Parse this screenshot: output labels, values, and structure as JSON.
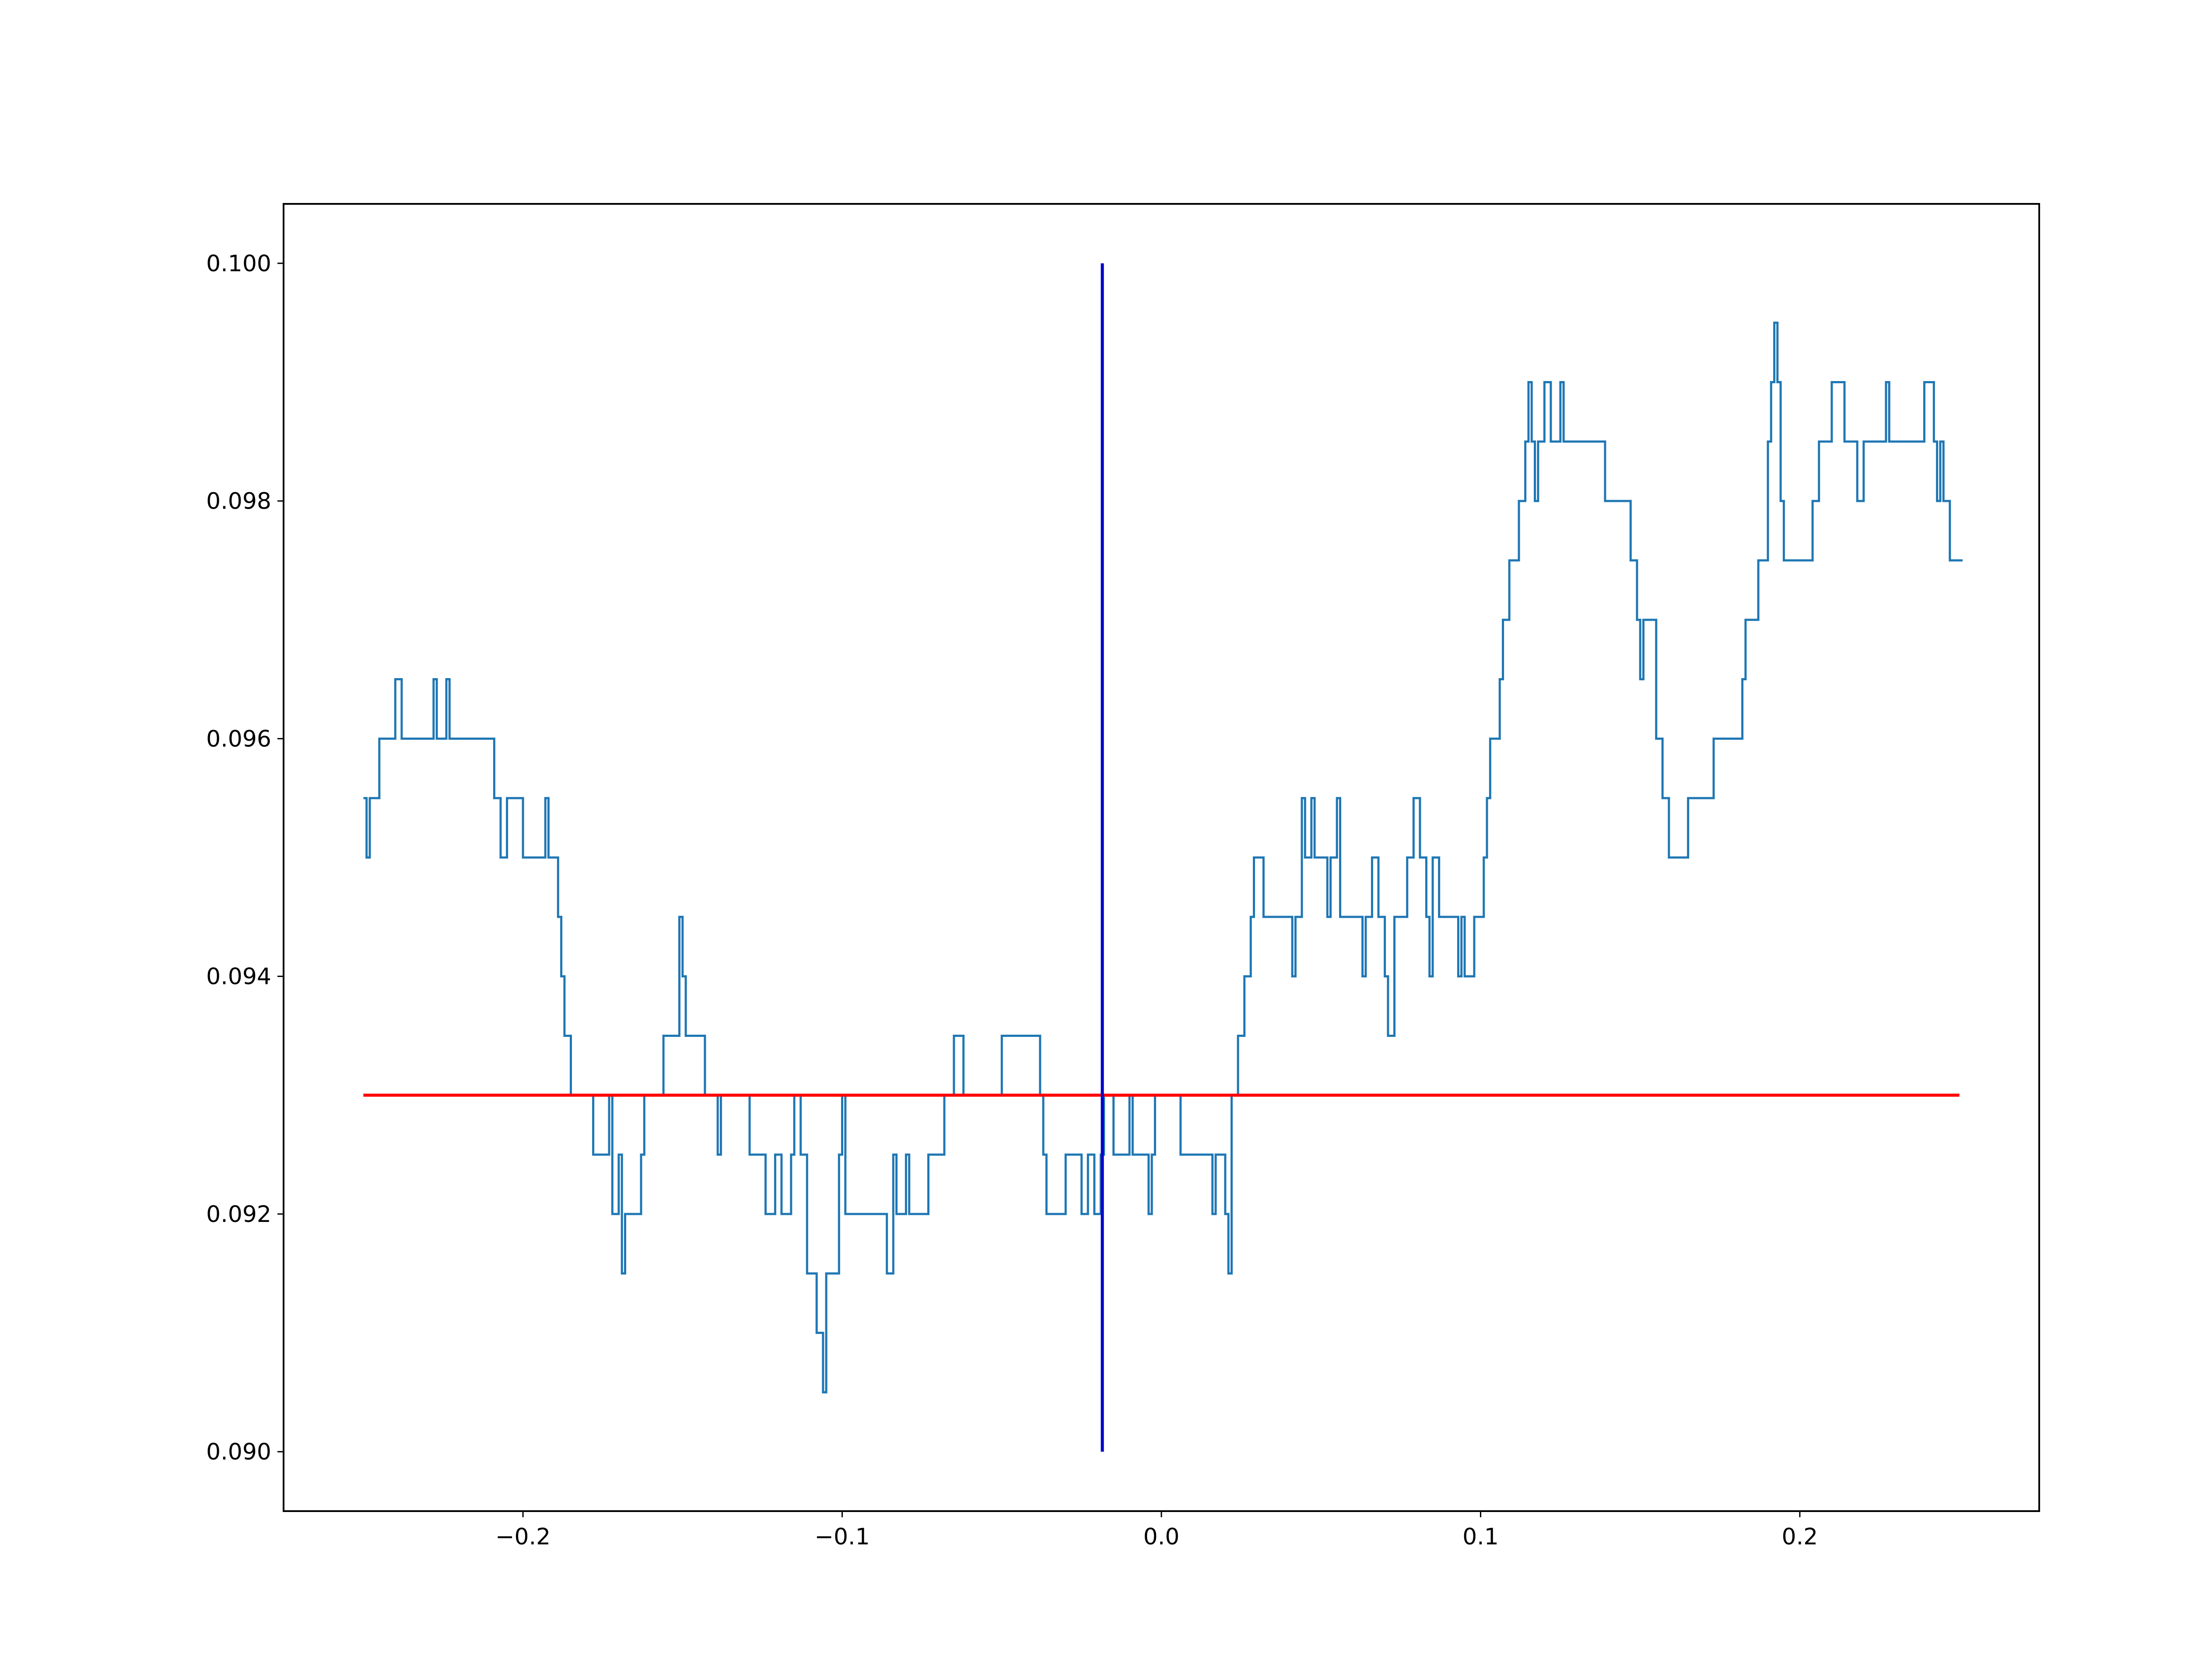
{
  "chart_data": {
    "type": "line",
    "title": "",
    "xlabel": "",
    "ylabel": "",
    "xlim": [
      -0.275,
      0.275
    ],
    "ylim": [
      0.0895,
      0.1005
    ],
    "grid": false,
    "legend": "none",
    "x_ticks": [
      {
        "value": -0.2,
        "label": "−0.2"
      },
      {
        "value": -0.1,
        "label": "−0.1"
      },
      {
        "value": 0.0,
        "label": "0.0"
      },
      {
        "value": 0.1,
        "label": "0.1"
      },
      {
        "value": 0.2,
        "label": "0.2"
      }
    ],
    "y_ticks": [
      {
        "value": 0.09,
        "label": "0.090"
      },
      {
        "value": 0.092,
        "label": "0.092"
      },
      {
        "value": 0.094,
        "label": "0.094"
      },
      {
        "value": 0.096,
        "label": "0.096"
      },
      {
        "value": 0.098,
        "label": "0.098"
      },
      {
        "value": 0.1,
        "label": "0.100"
      }
    ],
    "series": [
      {
        "style": "step",
        "color": "#1f77b4",
        "points": [
          [
            -0.25,
            0.0955
          ],
          [
            -0.249,
            0.095
          ],
          [
            -0.248,
            0.0955
          ],
          [
            -0.245,
            0.096
          ],
          [
            -0.24,
            0.0965
          ],
          [
            -0.238,
            0.096
          ],
          [
            -0.228,
            0.0965
          ],
          [
            -0.227,
            0.096
          ],
          [
            -0.224,
            0.0965
          ],
          [
            -0.223,
            0.096
          ],
          [
            -0.209,
            0.0955
          ],
          [
            -0.207,
            0.095
          ],
          [
            -0.205,
            0.0955
          ],
          [
            -0.2,
            0.095
          ],
          [
            -0.193,
            0.0955
          ],
          [
            -0.192,
            0.095
          ],
          [
            -0.189,
            0.0945
          ],
          [
            -0.188,
            0.094
          ],
          [
            -0.187,
            0.0935
          ],
          [
            -0.185,
            0.093
          ],
          [
            -0.178,
            0.0925
          ],
          [
            -0.173,
            0.093
          ],
          [
            -0.172,
            0.092
          ],
          [
            -0.17,
            0.0925
          ],
          [
            -0.169,
            0.0915
          ],
          [
            -0.168,
            0.092
          ],
          [
            -0.163,
            0.0925
          ],
          [
            -0.162,
            0.093
          ],
          [
            -0.156,
            0.0935
          ],
          [
            -0.151,
            0.0945
          ],
          [
            -0.15,
            0.094
          ],
          [
            -0.149,
            0.0935
          ],
          [
            -0.143,
            0.093
          ],
          [
            -0.139,
            0.0925
          ],
          [
            -0.138,
            0.093
          ],
          [
            -0.129,
            0.0925
          ],
          [
            -0.124,
            0.092
          ],
          [
            -0.121,
            0.0925
          ],
          [
            -0.119,
            0.092
          ],
          [
            -0.116,
            0.0925
          ],
          [
            -0.115,
            0.093
          ],
          [
            -0.113,
            0.0925
          ],
          [
            -0.111,
            0.0915
          ],
          [
            -0.108,
            0.091
          ],
          [
            -0.106,
            0.0905
          ],
          [
            -0.105,
            0.0915
          ],
          [
            -0.101,
            0.0925
          ],
          [
            -0.1,
            0.093
          ],
          [
            -0.099,
            0.092
          ],
          [
            -0.086,
            0.0915
          ],
          [
            -0.084,
            0.0925
          ],
          [
            -0.083,
            0.092
          ],
          [
            -0.08,
            0.0925
          ],
          [
            -0.079,
            0.092
          ],
          [
            -0.073,
            0.0925
          ],
          [
            -0.068,
            0.093
          ],
          [
            -0.065,
            0.0935
          ],
          [
            -0.062,
            0.093
          ],
          [
            -0.05,
            0.0935
          ],
          [
            -0.038,
            0.093
          ],
          [
            -0.037,
            0.0925
          ],
          [
            -0.036,
            0.092
          ],
          [
            -0.03,
            0.0925
          ],
          [
            -0.025,
            0.092
          ],
          [
            -0.023,
            0.0925
          ],
          [
            -0.021,
            0.092
          ],
          [
            -0.019,
            0.0925
          ],
          [
            -0.018,
            0.093
          ],
          [
            -0.015,
            0.0925
          ],
          [
            -0.01,
            0.093
          ],
          [
            -0.009,
            0.0925
          ],
          [
            -0.004,
            0.092
          ],
          [
            -0.003,
            0.0925
          ],
          [
            -0.002,
            0.093
          ],
          [
            0.006,
            0.0925
          ],
          [
            0.016,
            0.092
          ],
          [
            0.017,
            0.0925
          ],
          [
            0.02,
            0.092
          ],
          [
            0.021,
            0.0915
          ],
          [
            0.022,
            0.093
          ],
          [
            0.024,
            0.0935
          ],
          [
            0.026,
            0.094
          ],
          [
            0.028,
            0.0945
          ],
          [
            0.029,
            0.095
          ],
          [
            0.032,
            0.0945
          ],
          [
            0.041,
            0.094
          ],
          [
            0.042,
            0.0945
          ],
          [
            0.044,
            0.0955
          ],
          [
            0.045,
            0.095
          ],
          [
            0.047,
            0.0955
          ],
          [
            0.048,
            0.095
          ],
          [
            0.052,
            0.0945
          ],
          [
            0.053,
            0.095
          ],
          [
            0.055,
            0.0955
          ],
          [
            0.056,
            0.0945
          ],
          [
            0.063,
            0.094
          ],
          [
            0.064,
            0.0945
          ],
          [
            0.066,
            0.095
          ],
          [
            0.068,
            0.0945
          ],
          [
            0.07,
            0.094
          ],
          [
            0.071,
            0.0935
          ],
          [
            0.073,
            0.0945
          ],
          [
            0.077,
            0.095
          ],
          [
            0.079,
            0.0955
          ],
          [
            0.081,
            0.095
          ],
          [
            0.083,
            0.0945
          ],
          [
            0.084,
            0.094
          ],
          [
            0.085,
            0.095
          ],
          [
            0.087,
            0.0945
          ],
          [
            0.093,
            0.094
          ],
          [
            0.094,
            0.0945
          ],
          [
            0.095,
            0.094
          ],
          [
            0.098,
            0.0945
          ],
          [
            0.101,
            0.095
          ],
          [
            0.102,
            0.0955
          ],
          [
            0.103,
            0.096
          ],
          [
            0.106,
            0.0965
          ],
          [
            0.107,
            0.097
          ],
          [
            0.109,
            0.0975
          ],
          [
            0.112,
            0.098
          ],
          [
            0.114,
            0.0985
          ],
          [
            0.115,
            0.099
          ],
          [
            0.116,
            0.0985
          ],
          [
            0.117,
            0.098
          ],
          [
            0.118,
            0.0985
          ],
          [
            0.12,
            0.099
          ],
          [
            0.122,
            0.0985
          ],
          [
            0.125,
            0.099
          ],
          [
            0.126,
            0.0985
          ],
          [
            0.139,
            0.098
          ],
          [
            0.147,
            0.0975
          ],
          [
            0.149,
            0.097
          ],
          [
            0.15,
            0.0965
          ],
          [
            0.151,
            0.097
          ],
          [
            0.155,
            0.096
          ],
          [
            0.157,
            0.0955
          ],
          [
            0.159,
            0.095
          ],
          [
            0.165,
            0.0955
          ],
          [
            0.173,
            0.096
          ],
          [
            0.182,
            0.0965
          ],
          [
            0.183,
            0.097
          ],
          [
            0.187,
            0.0975
          ],
          [
            0.19,
            0.0985
          ],
          [
            0.191,
            0.099
          ],
          [
            0.192,
            0.0995
          ],
          [
            0.193,
            0.099
          ],
          [
            0.194,
            0.098
          ],
          [
            0.195,
            0.0975
          ],
          [
            0.204,
            0.098
          ],
          [
            0.206,
            0.0985
          ],
          [
            0.21,
            0.099
          ],
          [
            0.214,
            0.0985
          ],
          [
            0.218,
            0.098
          ],
          [
            0.22,
            0.0985
          ],
          [
            0.227,
            0.099
          ],
          [
            0.228,
            0.0985
          ],
          [
            0.239,
            0.099
          ],
          [
            0.242,
            0.0985
          ],
          [
            0.243,
            0.098
          ],
          [
            0.244,
            0.0985
          ],
          [
            0.245,
            0.098
          ],
          [
            0.247,
            0.0975
          ],
          [
            0.251,
            0.0975
          ]
        ]
      },
      {
        "style": "hline",
        "color": "#ff0000",
        "y": 0.093,
        "x_range": [
          -0.25,
          0.25
        ]
      },
      {
        "style": "vline",
        "color": "#0000cd",
        "x": -0.0185,
        "y_range": [
          0.09,
          0.1
        ]
      }
    ]
  }
}
